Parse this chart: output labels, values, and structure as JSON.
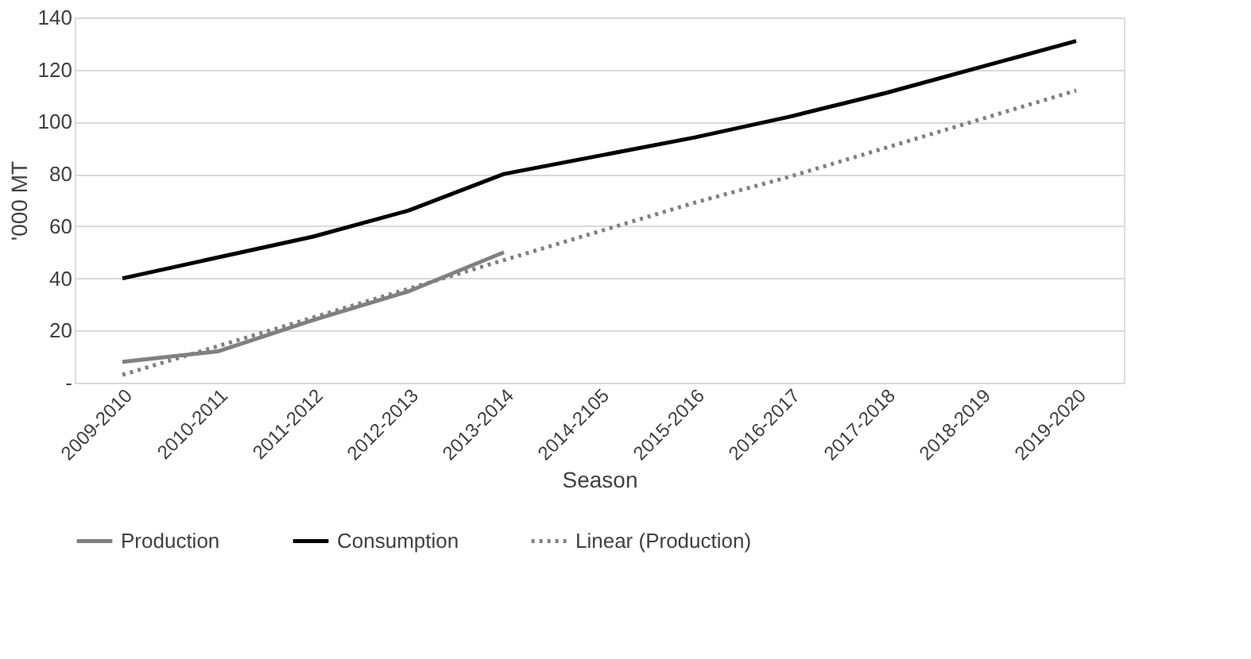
{
  "chart_data": {
    "type": "line",
    "xlabel": "Season",
    "ylabel": "'000 MT",
    "categories": [
      "2009-2010",
      "2010-2011",
      "2011-2012",
      "2012-2013",
      "2013-2014",
      "2014-2105",
      "2015-2016",
      "2016-2017",
      "2017-2018",
      "2018-2019",
      "2019-2020"
    ],
    "series": [
      {
        "name": "Production",
        "color": "#808080",
        "values": [
          8,
          12,
          24,
          35,
          50,
          null,
          null,
          null,
          null,
          null,
          null
        ],
        "line_style": "solid"
      },
      {
        "name": "Consumption",
        "color": "#000000",
        "values": [
          40,
          48,
          56,
          66,
          80,
          87,
          94,
          102,
          111,
          121,
          131
        ],
        "line_style": "solid"
      },
      {
        "name": "Linear (Production)",
        "color": "#808080",
        "values": [
          3,
          14,
          25,
          36,
          47,
          58,
          69,
          79,
          90,
          101,
          112
        ],
        "line_style": "dotted"
      }
    ],
    "ylim": [
      0,
      140
    ],
    "yticks": [
      {
        "value": 0,
        "label": "-"
      },
      20,
      40,
      60,
      80,
      100,
      120,
      140
    ],
    "grid": "y",
    "legend": "bottom",
    "marker": "none"
  }
}
